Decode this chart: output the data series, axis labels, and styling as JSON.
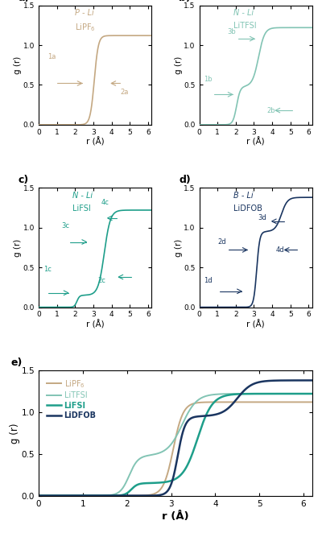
{
  "colors": {
    "LiPF6": "#C4A882",
    "LiTFSI": "#82C4B4",
    "LiFSI": "#1E9E8A",
    "LiDFOB": "#1A3560"
  },
  "ylim": [
    0,
    1.5
  ],
  "xlim": [
    0,
    6.2
  ],
  "yticks": [
    0.0,
    0.5,
    1.0,
    1.5
  ],
  "xticks": [
    0,
    1,
    2,
    3,
    4,
    5,
    6
  ],
  "figsize": [
    4.0,
    6.62
  ],
  "dpi": 100
}
